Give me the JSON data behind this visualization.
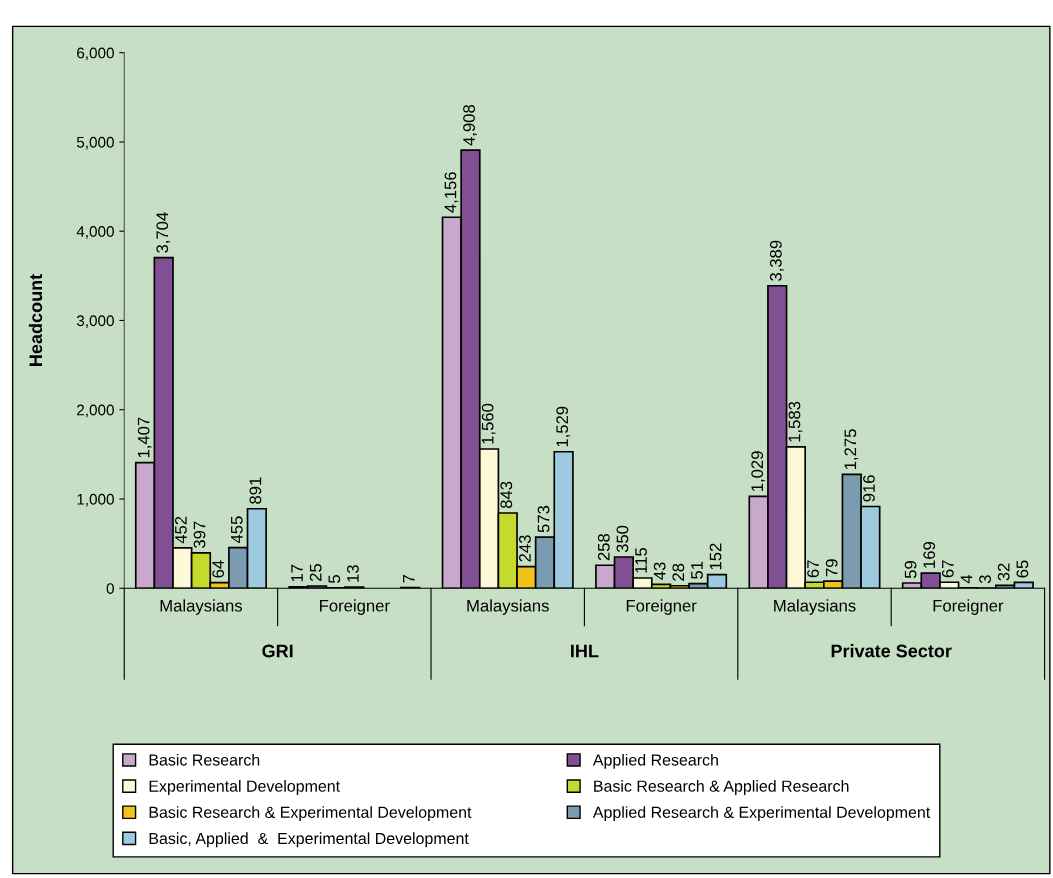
{
  "chart_data": {
    "type": "bar",
    "ylabel": "Headcount",
    "categories": [
      "Malaysians",
      "Foreigner",
      "Malaysians",
      "Foreigner",
      "Malaysians",
      "Foreigner"
    ],
    "annotations": [
      "GRI",
      "IHL",
      "Private Sector"
    ],
    "ylim": [
      0,
      6000
    ],
    "yticks": [
      0,
      {
        "value": 1000,
        "label": "1,000"
      },
      {
        "value": 2000,
        "label": "2,000"
      },
      {
        "value": 3000,
        "label": "3,000"
      },
      {
        "value": 4000,
        "label": "4,000"
      },
      {
        "value": 5000,
        "label": "5,000"
      },
      {
        "value": 6000,
        "label": "6,000"
      }
    ],
    "grid": false,
    "legend": "bottom",
    "series": [
      {
        "name": "Basic Research",
        "color": "#c8a9cc",
        "values": [
          1407,
          17,
          4156,
          258,
          1029,
          59
        ],
        "value_labels": [
          "1,407",
          "17",
          "4,156",
          "258",
          "1,029",
          "59"
        ]
      },
      {
        "name": "Applied Research",
        "color": "#834f94",
        "values": [
          3704,
          25,
          4908,
          350,
          3389,
          169
        ],
        "value_labels": [
          "3,704",
          "25",
          "4,908",
          "350",
          "3,389",
          "169"
        ]
      },
      {
        "name": "Experimental Development",
        "color": "#fdf8d6",
        "values": [
          452,
          5,
          1560,
          115,
          1583,
          67
        ],
        "value_labels": [
          "452",
          "5",
          "1,560",
          "115",
          "1,583",
          "67"
        ]
      },
      {
        "name": "Basic Research & Applied Research",
        "color": "#c6da2e",
        "values": [
          397,
          13,
          843,
          43,
          67,
          4
        ],
        "value_labels": [
          "397",
          "13",
          "843",
          "43",
          "67",
          "4"
        ]
      },
      {
        "name": "Basic Research & Experimental Development",
        "color": "#f1c21a",
        "values": [
          64,
          null,
          243,
          28,
          79,
          3
        ],
        "value_labels": [
          "64",
          null,
          "243",
          "28",
          "79",
          "3"
        ]
      },
      {
        "name": "Applied Research & Experimental Development",
        "color": "#7b9bb0",
        "values": [
          455,
          null,
          573,
          51,
          1275,
          32
        ],
        "value_labels": [
          "455",
          null,
          "573",
          "51",
          "1,275",
          "32"
        ]
      },
      {
        "name": "Basic, Applied  &  Experimental Development",
        "color": "#9ecae0",
        "values": [
          891,
          7,
          1529,
          152,
          916,
          65
        ],
        "value_labels": [
          "891",
          "7",
          "1,529",
          "152",
          "916",
          "65"
        ]
      }
    ]
  }
}
